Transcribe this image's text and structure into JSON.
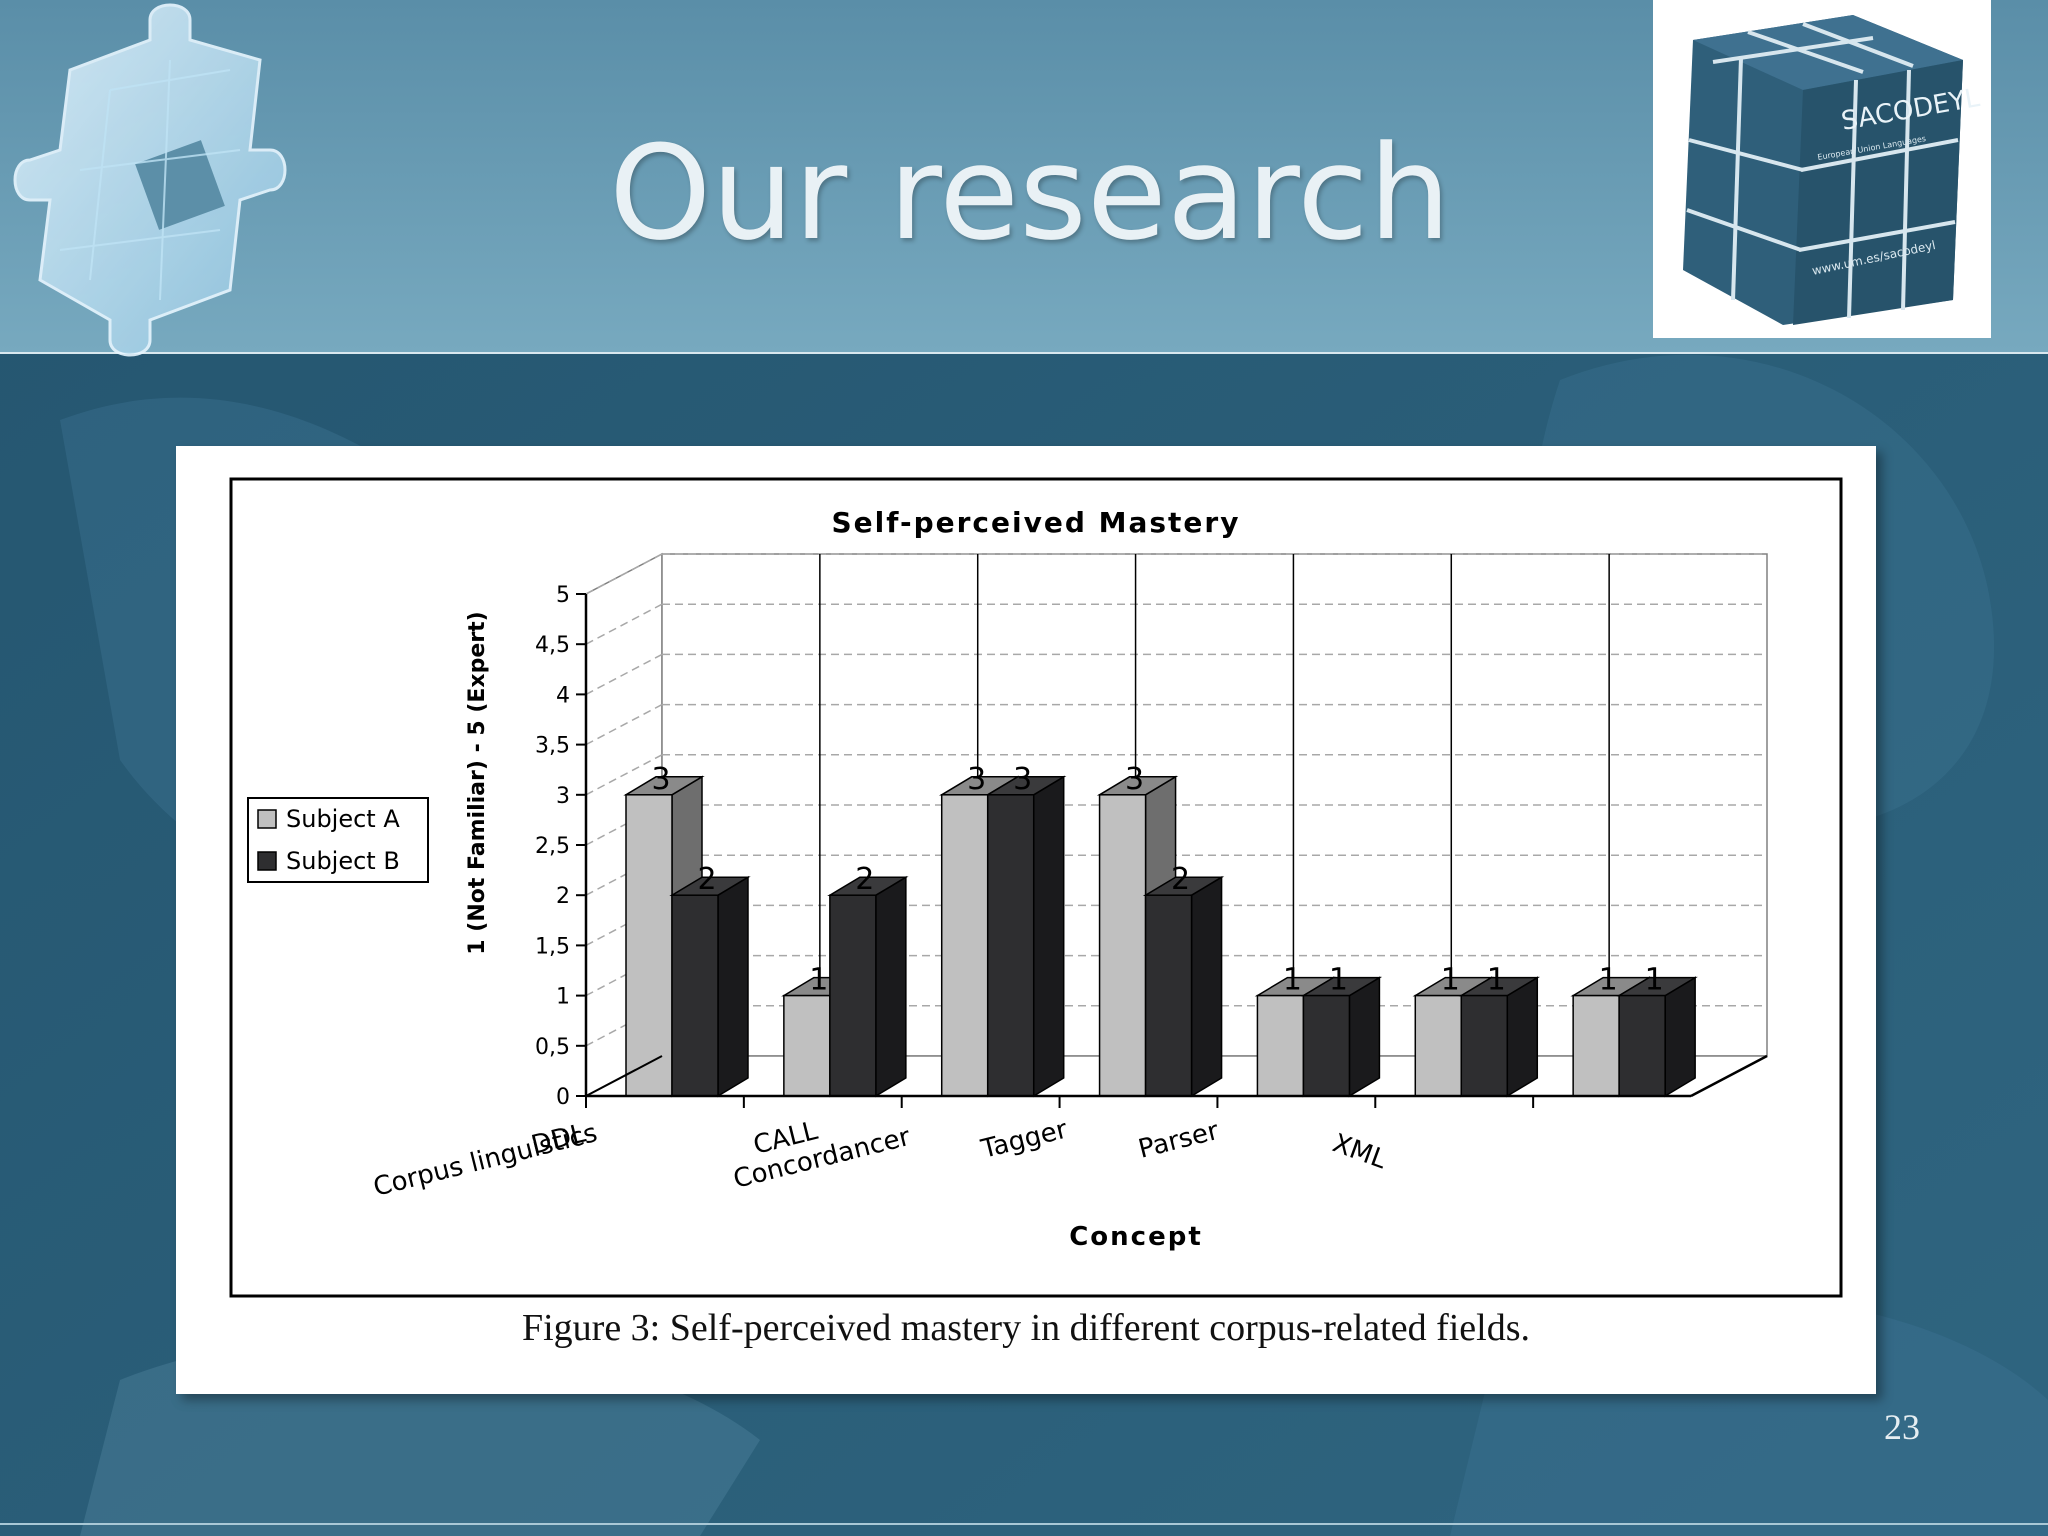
{
  "slide": {
    "title": "Our research",
    "page_number": "23",
    "logo_text": "SACODEYL",
    "logo_url_text": "www.um.es/sacodeyl",
    "logo_sub_text": "European Union Languages",
    "colors": {
      "background": "#2b5d78",
      "header": "#6b9db3",
      "title": "#e9f1f5"
    }
  },
  "figure": {
    "caption": "Figure 3: Self-perceived mastery in different corpus-related fields."
  },
  "chart_data": {
    "type": "bar",
    "style": "3d-clustered",
    "title": "Self-perceived Mastery",
    "xlabel": "Concept",
    "ylabel": "1 (Not Familiar) - 5 (Expert)",
    "categories": [
      "Corpus linguistics",
      "DDL",
      "CALL",
      "Concordancer",
      "Tagger",
      "Parser",
      "XML"
    ],
    "series": [
      {
        "name": "Subject A",
        "values": [
          3,
          1,
          3,
          3,
          1,
          1,
          1
        ],
        "color": "#c0c0c0"
      },
      {
        "name": "Subject B",
        "values": [
          2,
          2,
          3,
          2,
          1,
          1,
          1
        ],
        "color": "#2e2e30"
      }
    ],
    "data_labels": {
      "Subject A": [
        "3",
        "1",
        "3",
        "3",
        "1",
        "1",
        "1"
      ],
      "Subject B": [
        "2",
        "2",
        "3",
        "2",
        "1",
        "1",
        "1"
      ]
    },
    "y_ticks": [
      "0",
      "0,5",
      "1",
      "1,5",
      "2",
      "2,5",
      "3",
      "3,5",
      "4",
      "4,5",
      "5"
    ],
    "ylim": [
      0,
      5
    ],
    "grid": true,
    "legend_position": "left"
  }
}
